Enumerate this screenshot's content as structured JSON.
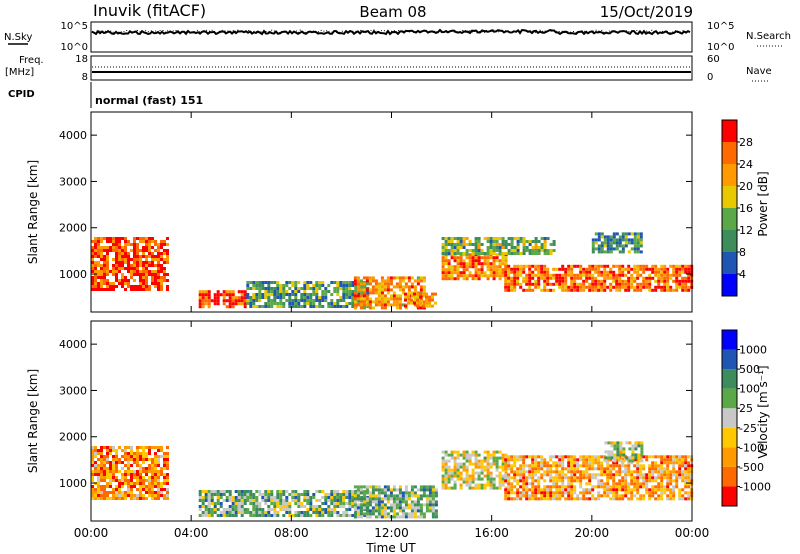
{
  "header": {
    "station": "Inuvik (fitACF)",
    "beam": "Beam 08",
    "date": "15/Oct/2019"
  },
  "top_panels": {
    "nsky_label": "N.Sky",
    "nsearch_label": "N.Search",
    "nsky_ticks": [
      "10^5",
      "10^0"
    ],
    "nsearch_ticks": [
      "10^5",
      "10^0"
    ],
    "freq_label": "Freq.",
    "freq_unit": "[MHz]",
    "freq_ticks": [
      "18",
      "8"
    ],
    "nave_label": "Nave",
    "nave_ticks": [
      "60",
      "0"
    ],
    "cpid_label": "CPID",
    "cpid_value": "normal (fast) 151"
  },
  "chart_data": [
    {
      "type": "heatmap",
      "name": "power",
      "ylabel": "Slant Range [km]",
      "xlabel": "",
      "colorbar_label": "Power [dB]",
      "colorbar_ticks": [
        "28",
        "24",
        "20",
        "16",
        "12",
        "8",
        "4"
      ],
      "colorbar_colors": [
        "#0000ff",
        "#1f56b4",
        "#3c8c5c",
        "#5aa848",
        "#e8c800",
        "#ff9a00",
        "#ff6a00",
        "#ff0000"
      ],
      "y_ticks": [
        "4000",
        "3000",
        "2000",
        "1000"
      ],
      "ylim": [
        180,
        4500
      ],
      "xlim": [
        0,
        24
      ],
      "regions": [
        {
          "t0": 0.0,
          "t1": 3.1,
          "r0": 650,
          "r1": 1800,
          "level": 0.85
        },
        {
          "t0": 4.3,
          "t1": 6.2,
          "r0": 320,
          "r1": 650,
          "level": 0.9
        },
        {
          "t0": 6.2,
          "t1": 11.0,
          "r0": 280,
          "r1": 850,
          "level": 0.35
        },
        {
          "t0": 10.5,
          "t1": 13.3,
          "r0": 300,
          "r1": 950,
          "level": 0.7
        },
        {
          "t0": 12.5,
          "t1": 13.8,
          "r0": 300,
          "r1": 600,
          "level": 0.75
        },
        {
          "t0": 14.0,
          "t1": 16.6,
          "r0": 900,
          "r1": 1450,
          "level": 0.75
        },
        {
          "t0": 14.0,
          "t1": 18.5,
          "r0": 1450,
          "r1": 1800,
          "level": 0.45
        },
        {
          "t0": 16.5,
          "t1": 24.0,
          "r0": 650,
          "r1": 1200,
          "level": 0.8
        },
        {
          "t0": 20.0,
          "t1": 22.0,
          "r0": 1500,
          "r1": 1900,
          "level": 0.35
        }
      ]
    },
    {
      "type": "heatmap",
      "name": "velocity",
      "ylabel": "Slant Range [km]",
      "xlabel": "Time UT",
      "colorbar_label": "Velocity [m s⁻¹]",
      "colorbar_ticks": [
        "1000",
        "500",
        "100",
        "25",
        "-25",
        "-100",
        "-500",
        "-1000"
      ],
      "colorbar_colors": [
        "#ff0000",
        "#ff6a00",
        "#ff9a00",
        "#ffc800",
        "#c8c8c8",
        "#5aa848",
        "#3c8c5c",
        "#1f56b4",
        "#0000ff"
      ],
      "x_ticks": [
        "00:00",
        "04:00",
        "08:00",
        "12:00",
        "16:00",
        "20:00",
        "00:00"
      ],
      "y_ticks": [
        "4000",
        "3000",
        "2000",
        "1000"
      ],
      "ylim": [
        180,
        4500
      ],
      "xlim": [
        0,
        24
      ],
      "regions": [
        {
          "t0": 0.0,
          "t1": 3.1,
          "r0": 650,
          "r1": 1800,
          "level": 0.25
        },
        {
          "t0": 4.3,
          "t1": 6.2,
          "r0": 320,
          "r1": 850,
          "level": 0.6
        },
        {
          "t0": 6.2,
          "t1": 11.0,
          "r0": 280,
          "r1": 850,
          "level": 0.6
        },
        {
          "t0": 10.5,
          "t1": 13.8,
          "r0": 300,
          "r1": 950,
          "level": 0.62
        },
        {
          "t0": 14.0,
          "t1": 16.6,
          "r0": 900,
          "r1": 1700,
          "level": 0.45
        },
        {
          "t0": 16.5,
          "t1": 24.0,
          "r0": 650,
          "r1": 1600,
          "level": 0.3
        },
        {
          "t0": 20.5,
          "t1": 22.0,
          "r0": 1500,
          "r1": 1900,
          "level": 0.5
        }
      ]
    }
  ]
}
